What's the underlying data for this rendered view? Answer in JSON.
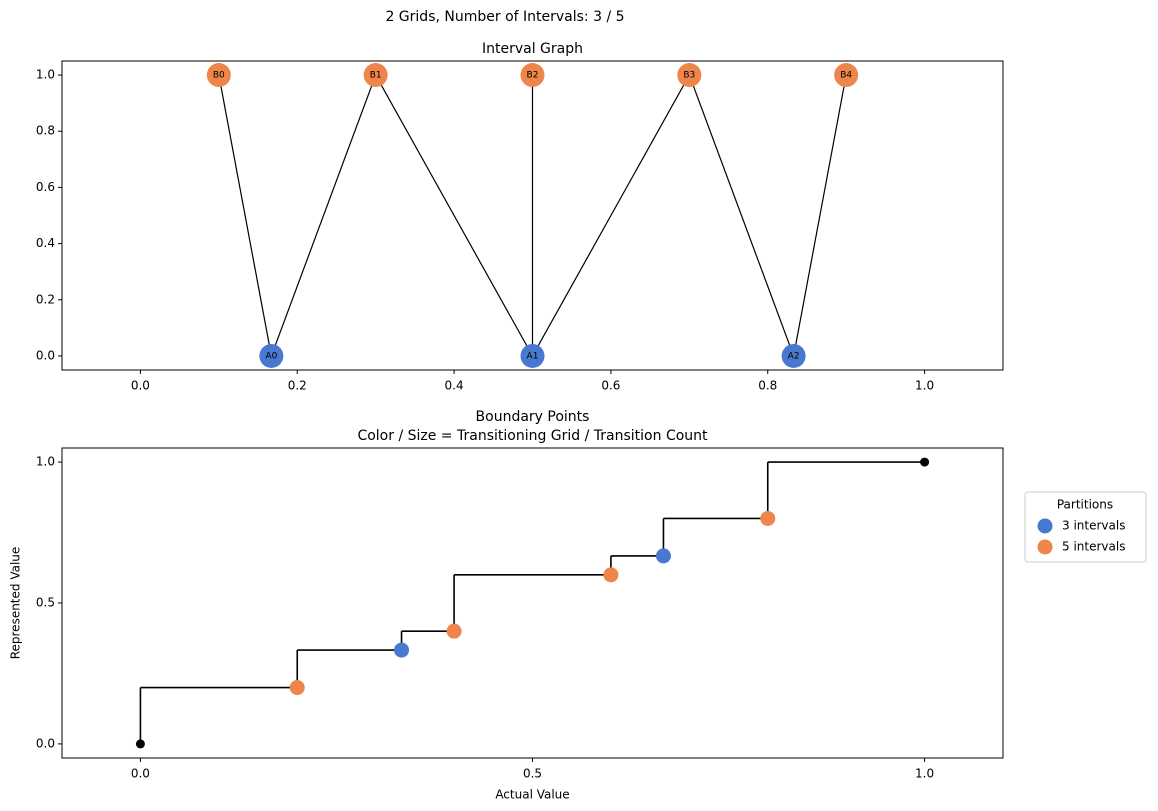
{
  "title": "2 Grids, Number of Intervals: 3 / 5",
  "chart_data": [
    {
      "type": "graph",
      "title": "Interval Graph",
      "xlim": [
        -0.1,
        1.1
      ],
      "ylim": [
        -0.05,
        1.05
      ],
      "xticks": [
        {
          "value": 0,
          "label": "0.0"
        },
        0.2,
        0.4,
        0.6,
        0.8,
        {
          "value": 1,
          "label": "1.0"
        }
      ],
      "yticks": [
        {
          "value": 0,
          "label": "0.0"
        },
        0.2,
        0.4,
        0.6,
        0.8,
        {
          "value": 1,
          "label": "1.0"
        }
      ],
      "series": [
        {
          "color": "#4878d0",
          "labels": [
            "A0",
            "A1",
            "A2"
          ],
          "x": [
            0.167,
            0.5,
            0.833
          ],
          "values": [
            0,
            0,
            0
          ]
        },
        {
          "color": "#ee854a",
          "labels": [
            "B0",
            "B1",
            "B2",
            "B3",
            "B4"
          ],
          "x": [
            0.1,
            0.3,
            0.5,
            0.7,
            0.9
          ],
          "values": [
            1,
            1,
            1,
            1,
            1
          ]
        }
      ],
      "edges": [
        [
          "B0",
          "A0"
        ],
        [
          "A0",
          "B1"
        ],
        [
          "B1",
          "A1"
        ],
        [
          "B2",
          "A1"
        ],
        [
          "A1",
          "B3"
        ],
        [
          "B3",
          "A2"
        ],
        [
          "A2",
          "B4"
        ]
      ],
      "edge_color": "#000000"
    },
    {
      "type": "step",
      "title": "Boundary Points",
      "subtitle": "Color / Size = Transitioning Grid / Transition Count",
      "xlabel": "Actual Value",
      "ylabel": "Represented Value",
      "xlim": [
        -0.1,
        1.1
      ],
      "ylim": [
        -0.05,
        1.05
      ],
      "xticks": [
        {
          "value": 0,
          "label": "0.0"
        },
        0.5,
        {
          "value": 1,
          "label": "1.0"
        }
      ],
      "yticks": [
        {
          "value": 0,
          "label": "0.0"
        },
        0.5,
        {
          "value": 1,
          "label": "1.0"
        }
      ],
      "line": {
        "color": "#000000",
        "x": [
          0,
          0.2,
          0.333,
          0.4,
          0.6,
          0.667,
          0.8,
          1
        ],
        "values": [
          0,
          0.2,
          0.333,
          0.4,
          0.6,
          0.667,
          0.8,
          1
        ]
      },
      "endpoints": {
        "color": "#000000",
        "x": [
          0,
          1
        ],
        "values": [
          0,
          1
        ]
      },
      "series": [
        {
          "name": "3 intervals",
          "color": "#4878d0",
          "x": [
            0.333,
            0.667
          ],
          "values": [
            0.333,
            0.667
          ]
        },
        {
          "name": "5 intervals",
          "color": "#ee854a",
          "x": [
            0.2,
            0.4,
            0.6,
            0.8
          ],
          "values": [
            0.2,
            0.4,
            0.6,
            0.8
          ]
        }
      ],
      "legend_title": "Partitions",
      "legend": "outside right"
    }
  ]
}
